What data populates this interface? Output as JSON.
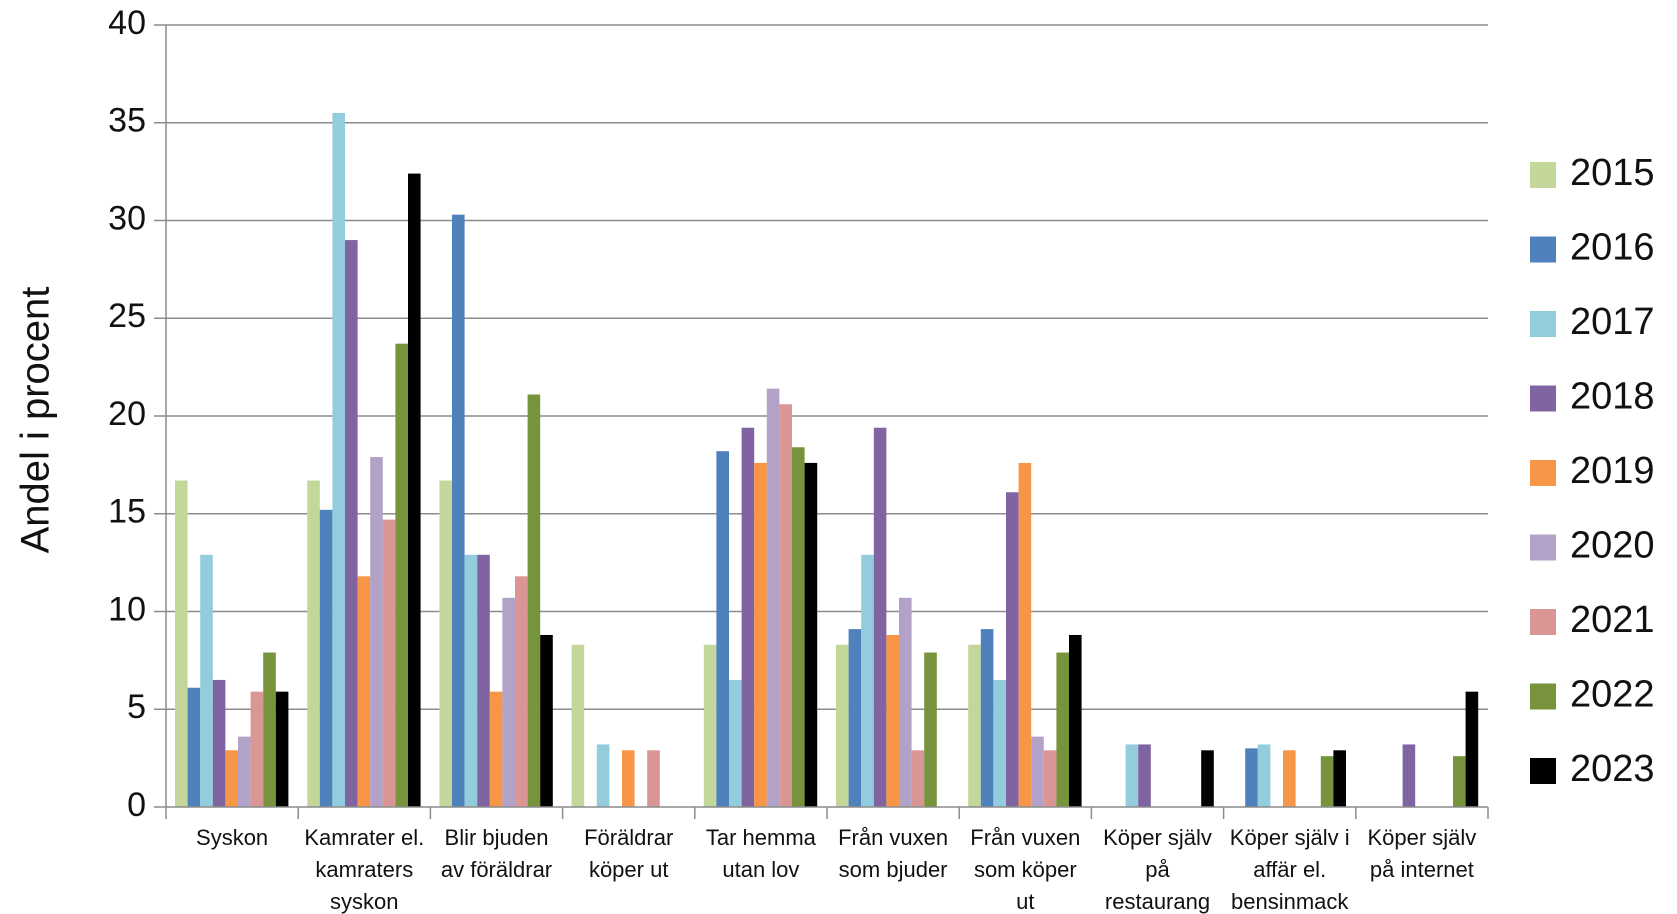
{
  "chart_data": {
    "type": "bar",
    "ylabel": "Andel i procent",
    "ylim": [
      0,
      40
    ],
    "yticks": [
      0,
      5,
      10,
      15,
      20,
      25,
      30,
      35,
      40
    ],
    "grid": true,
    "legend_position": "right",
    "categories": [
      [
        "Syskon"
      ],
      [
        "Kamrater el.",
        "kamraters",
        "syskon"
      ],
      [
        "Blir bjuden",
        "av föräldrar"
      ],
      [
        "Föräldrar",
        "köper ut"
      ],
      [
        "Tar hemma",
        "utan lov"
      ],
      [
        "Från vuxen",
        "som bjuder"
      ],
      [
        "Från vuxen",
        "som köper",
        "ut"
      ],
      [
        "Köper själv",
        "på",
        "restaurang"
      ],
      [
        "Köper själv i",
        "affär el.",
        "bensinmack"
      ],
      [
        "Köper själv",
        "på internet"
      ]
    ],
    "series": [
      {
        "name": "2015",
        "color": "#c4d79b",
        "values": [
          16.7,
          16.7,
          16.7,
          8.3,
          8.3,
          8.3,
          8.3,
          0,
          0,
          0
        ]
      },
      {
        "name": "2016",
        "color": "#4f81bd",
        "values": [
          6.1,
          15.2,
          30.3,
          0,
          18.2,
          9.1,
          9.1,
          0,
          3.0,
          0
        ]
      },
      {
        "name": "2017",
        "color": "#93cddd",
        "values": [
          12.9,
          35.5,
          12.9,
          3.2,
          6.5,
          12.9,
          6.5,
          3.2,
          3.2,
          0
        ]
      },
      {
        "name": "2018",
        "color": "#8064a2",
        "values": [
          6.5,
          29.0,
          12.9,
          0,
          19.4,
          19.4,
          16.1,
          3.2,
          0,
          3.2
        ]
      },
      {
        "name": "2019",
        "color": "#f79646",
        "values": [
          2.9,
          11.8,
          5.9,
          2.9,
          17.6,
          8.8,
          17.6,
          0,
          2.9,
          0
        ]
      },
      {
        "name": "2020",
        "color": "#b3a2c7",
        "values": [
          3.6,
          17.9,
          10.7,
          0,
          21.4,
          10.7,
          3.6,
          0,
          0,
          0
        ]
      },
      {
        "name": "2021",
        "color": "#d99694",
        "values": [
          5.9,
          14.7,
          11.8,
          2.9,
          20.6,
          2.9,
          2.9,
          0,
          0,
          0
        ]
      },
      {
        "name": "2022",
        "color": "#77933c",
        "values": [
          7.9,
          23.7,
          21.1,
          0,
          18.4,
          7.9,
          7.9,
          0,
          2.6,
          2.6
        ]
      },
      {
        "name": "2023",
        "color": "#000000",
        "values": [
          5.9,
          32.4,
          8.8,
          0,
          17.6,
          0,
          8.8,
          2.9,
          2.9,
          5.9
        ]
      }
    ]
  }
}
